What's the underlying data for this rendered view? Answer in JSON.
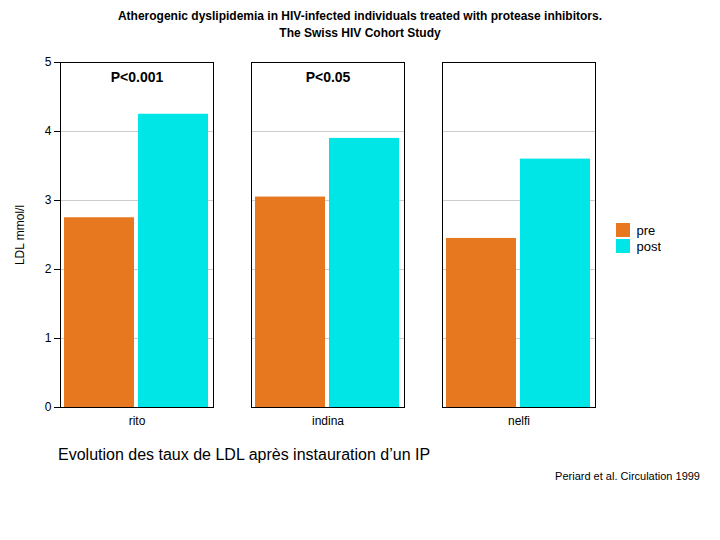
{
  "chart_data": {
    "type": "bar",
    "title": "Atherogenic dyslipidemia in HIV-infected individuals treated with protease inhibitors.",
    "subtitle": "The Swiss HIV Cohort Study",
    "caption": "Evolution des taux de LDL après instauration d’un IP",
    "note": "Periard et al. Circulation 1999",
    "ylabel": "LDL mmol/l",
    "categories": [
      "rito",
      "indina",
      "nelfi"
    ],
    "series": [
      {
        "name": "pre",
        "color": "#E87820",
        "values": [
          2.75,
          3.05,
          2.45
        ]
      },
      {
        "name": "post",
        "color": "#00E5E5",
        "values": [
          4.25,
          3.9,
          3.6
        ]
      }
    ],
    "annotations": [
      "P<0.001",
      "P<0.05"
    ],
    "ylim": [
      0,
      5
    ],
    "yticks": [
      0,
      1,
      2,
      3,
      4,
      5
    ],
    "grid": true,
    "legend": "right"
  }
}
